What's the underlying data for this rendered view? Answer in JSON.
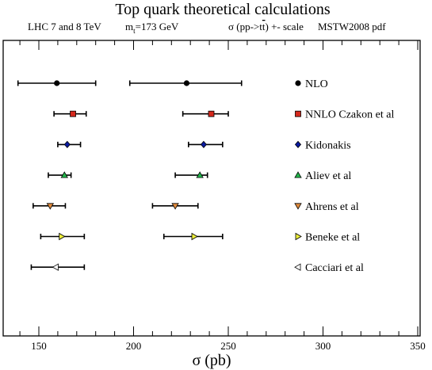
{
  "chart_data": {
    "type": "scatter",
    "title": "Top quark theoretical calculations",
    "subtitle": {
      "energy": "LHC 7 and 8 TeV",
      "mass_prefix": "m",
      "mass_sub": "t",
      "mass_value": "=173 GeV",
      "process_prefix": "σ (pp->t",
      "process_bar": "t",
      "process_suffix": ") +- scale",
      "pdf": "MSTW2008 pdf"
    },
    "xlabel": "σ (pb)",
    "ylabel": "",
    "xlim": [
      135,
      350
    ],
    "xticks": [
      150,
      200,
      250,
      300,
      350
    ],
    "grid": false,
    "legend_position": "right",
    "series": [
      {
        "name": "NLO",
        "marker": "circle",
        "color": "#000000",
        "points": [
          {
            "x": 159.5,
            "lo": 139,
            "hi": 180
          },
          {
            "x": 228,
            "lo": 198,
            "hi": 257
          }
        ]
      },
      {
        "name": "NNLO Czakon et al",
        "marker": "square",
        "color": "#d4281c",
        "points": [
          {
            "x": 168,
            "lo": 158,
            "hi": 175
          },
          {
            "x": 241,
            "lo": 226,
            "hi": 250
          }
        ]
      },
      {
        "name": "Kidonakis",
        "marker": "diamond",
        "color": "#0a1aa0",
        "points": [
          {
            "x": 165,
            "lo": 160,
            "hi": 172
          },
          {
            "x": 237,
            "lo": 229,
            "hi": 247
          }
        ]
      },
      {
        "name": "Aliev et al",
        "marker": "triangle-up",
        "color": "#22b44a",
        "points": [
          {
            "x": 163.5,
            "lo": 155,
            "hi": 167
          },
          {
            "x": 235,
            "lo": 222,
            "hi": 239
          }
        ]
      },
      {
        "name": "Ahrens et al",
        "marker": "triangle-down",
        "color": "#e08a3c",
        "points": [
          {
            "x": 156,
            "lo": 147,
            "hi": 164
          },
          {
            "x": 222,
            "lo": 210,
            "hi": 234
          }
        ]
      },
      {
        "name": "Beneke et al",
        "marker": "triangle-right",
        "color": "#eef03a",
        "points": [
          {
            "x": 162,
            "lo": 151,
            "hi": 174
          },
          {
            "x": 232,
            "lo": 216,
            "hi": 247
          }
        ]
      },
      {
        "name": "Cacciari et al",
        "marker": "triangle-left",
        "color": "#ffffff",
        "points": [
          {
            "x": 159,
            "lo": 146,
            "hi": 174
          }
        ]
      }
    ]
  }
}
